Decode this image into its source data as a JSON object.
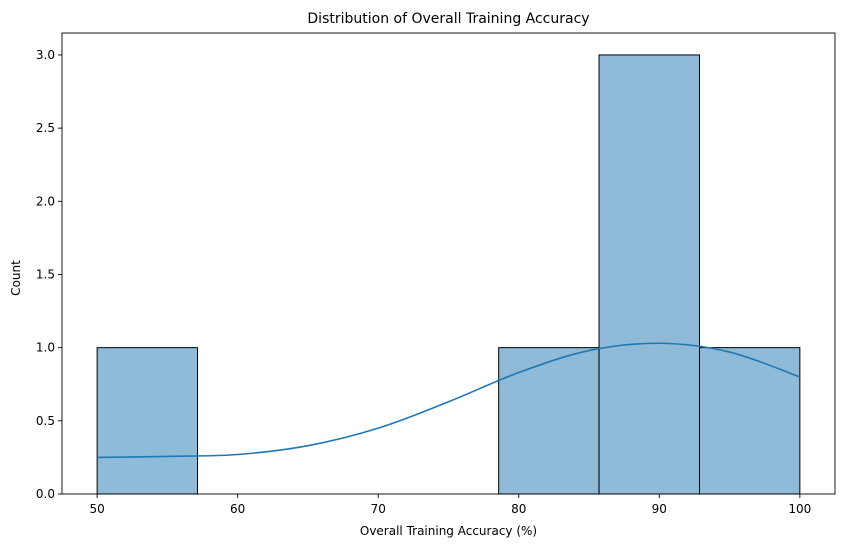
{
  "chart_data": {
    "type": "bar",
    "title": "Distribution of Overall Training Accuracy",
    "xlabel": "Overall Training Accuracy (%)",
    "ylabel": "Count",
    "xlim": [
      47.5,
      102.5
    ],
    "ylim": [
      0,
      3.15
    ],
    "x_ticks": [
      50,
      60,
      70,
      80,
      90,
      100
    ],
    "y_ticks": [
      0.0,
      0.5,
      1.0,
      1.5,
      2.0,
      2.5,
      3.0
    ],
    "x_tick_labels": [
      "50",
      "60",
      "70",
      "80",
      "90",
      "100"
    ],
    "y_tick_labels": [
      "0.0",
      "0.5",
      "1.0",
      "1.5",
      "2.0",
      "2.5",
      "3.0"
    ],
    "bins": [
      {
        "x0": 50.0,
        "x1": 57.14,
        "count": 1
      },
      {
        "x0": 57.14,
        "x1": 64.29,
        "count": 0
      },
      {
        "x0": 64.29,
        "x1": 71.43,
        "count": 0
      },
      {
        "x0": 71.43,
        "x1": 78.57,
        "count": 0
      },
      {
        "x0": 78.57,
        "x1": 85.71,
        "count": 1
      },
      {
        "x0": 85.71,
        "x1": 92.86,
        "count": 3
      },
      {
        "x0": 92.86,
        "x1": 100.0,
        "count": 1
      }
    ],
    "kde": {
      "x": [
        50,
        55,
        60,
        65,
        70,
        75,
        80,
        85,
        90,
        95,
        100
      ],
      "y": [
        0.25,
        0.257,
        0.27,
        0.33,
        0.45,
        0.63,
        0.83,
        0.98,
        1.03,
        0.97,
        0.8
      ]
    },
    "colors": {
      "bar_fill": "#1f77b4",
      "bar_fill_opacity": 0.5,
      "bar_edge": "#000000",
      "kde_line": "#1f77b4"
    },
    "grid": false
  }
}
